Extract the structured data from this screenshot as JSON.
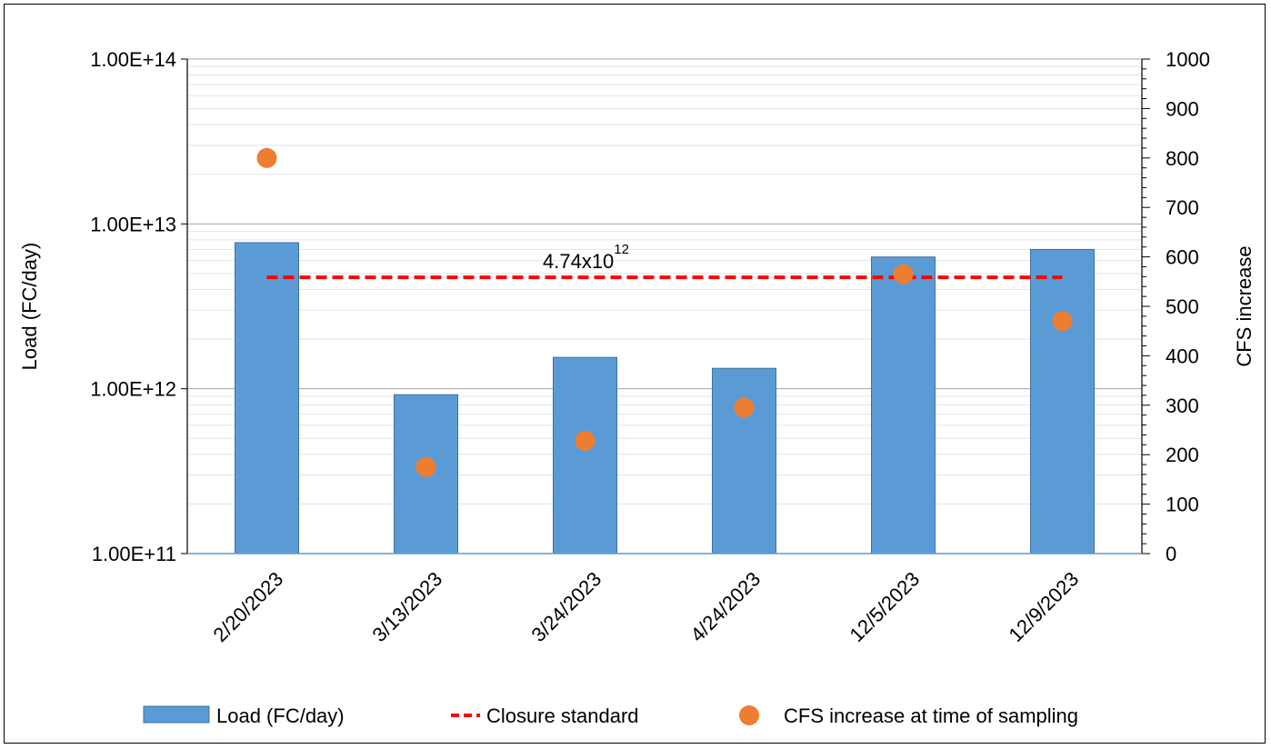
{
  "chart_data": {
    "type": "bar",
    "categories": [
      "2/20/2023",
      "3/13/2023",
      "3/24/2023",
      "4/24/2023",
      "12/5/2023",
      "12/9/2023"
    ],
    "series": [
      {
        "name": "Load (FC/day)",
        "axis": "left",
        "type": "bar",
        "color": "#5b9bd5",
        "values": [
          7700000000000.0,
          920000000000.0,
          1550000000000.0,
          1330000000000.0,
          6300000000000.0,
          7000000000000.0
        ]
      },
      {
        "name": "Closure standard",
        "axis": "left",
        "type": "line",
        "style": "dashed",
        "color": "#ff0000",
        "values": [
          4740000000000.0,
          4740000000000.0,
          4740000000000.0,
          4740000000000.0,
          4740000000000.0,
          4740000000000.0
        ]
      },
      {
        "name": "CFS increase at time of sampling",
        "axis": "right",
        "type": "scatter",
        "color": "#ed7d31",
        "values": [
          800,
          175,
          228,
          295,
          565,
          470
        ]
      }
    ],
    "y_left": {
      "label": "Load (FC/day)",
      "scale": "log",
      "ylim": [
        100000000000.0,
        100000000000000.0
      ],
      "tick_labels": [
        "1.00E+11",
        "1.00E+12",
        "1.00E+13",
        "1.00E+14"
      ]
    },
    "y_right": {
      "label": "CFS increase",
      "scale": "linear",
      "ylim": [
        0,
        1000
      ],
      "tick_labels": [
        "0",
        "100",
        "200",
        "300",
        "400",
        "500",
        "600",
        "700",
        "800",
        "900",
        "1000"
      ]
    },
    "annotation": {
      "base": "4.74x10",
      "exponent": "12"
    },
    "grid": true,
    "legend_position": "bottom"
  }
}
